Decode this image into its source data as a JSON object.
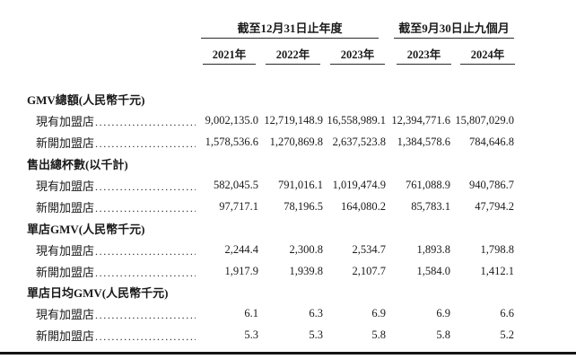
{
  "table": {
    "col_groups": [
      {
        "label": "截至12月31日止年度",
        "cols": [
          "2021年",
          "2022年",
          "2023年"
        ]
      },
      {
        "label": "截至9月30日止九個月",
        "cols": [
          "2023年",
          "2024年"
        ]
      }
    ],
    "sections": [
      {
        "title": "GMV總額(人民幣千元)",
        "rows": [
          {
            "label": "現有加盟店",
            "values": [
              "9,002,135.0",
              "12,719,148.9",
              "16,558,989.1",
              "12,394,771.6",
              "15,807,029.0"
            ]
          },
          {
            "label": "新開加盟店",
            "values": [
              "1,578,536.6",
              "1,270,869.8",
              "2,637,523.8",
              "1,384,578.6",
              "784,646.8"
            ]
          }
        ]
      },
      {
        "title": "售出總杯數(以千計)",
        "rows": [
          {
            "label": "現有加盟店",
            "values": [
              "582,045.5",
              "791,016.1",
              "1,019,474.9",
              "761,088.9",
              "940,786.7"
            ]
          },
          {
            "label": "新開加盟店",
            "values": [
              "97,717.1",
              "78,196.5",
              "164,080.2",
              "85,783.1",
              "47,794.2"
            ]
          }
        ]
      },
      {
        "title": "單店GMV(人民幣千元)",
        "rows": [
          {
            "label": "現有加盟店",
            "values": [
              "2,244.4",
              "2,300.8",
              "2,534.7",
              "1,893.8",
              "1,798.8"
            ]
          },
          {
            "label": "新開加盟店",
            "values": [
              "1,917.9",
              "1,939.8",
              "2,107.7",
              "1,584.0",
              "1,412.1"
            ]
          }
        ]
      },
      {
        "title": "單店日均GMV(人民幣千元)",
        "rows": [
          {
            "label": "現有加盟店",
            "values": [
              "6.1",
              "6.3",
              "6.9",
              "6.9",
              "6.6"
            ]
          },
          {
            "label": "新開加盟店",
            "values": [
              "5.3",
              "5.3",
              "5.8",
              "5.8",
              "5.2"
            ]
          }
        ]
      }
    ]
  }
}
